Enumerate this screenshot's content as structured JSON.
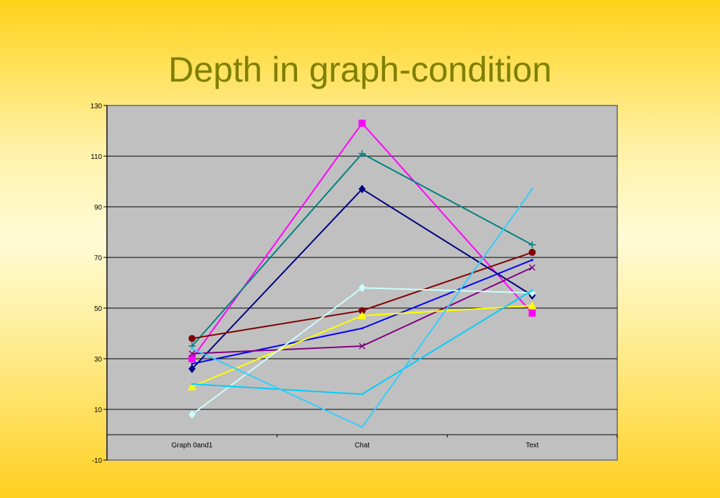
{
  "title": "Depth in graph-condition",
  "chart_data": {
    "type": "line",
    "title": "Depth in graph-condition",
    "categories": [
      "Graph 0and1",
      "Chat",
      "Text"
    ],
    "ylim": [
      -10,
      130
    ],
    "yticks": [
      -10,
      10,
      30,
      50,
      70,
      90,
      110,
      130
    ],
    "ytick_labels": [
      "-10",
      "10",
      "30",
      "50",
      "70",
      "90",
      "110",
      "130"
    ],
    "grid": true,
    "legend": "none",
    "series": [
      {
        "values": [
          30,
          123,
          48
        ],
        "color": "#ff00ff",
        "marker": "square"
      },
      {
        "values": [
          35,
          111,
          75
        ],
        "color": "#008080",
        "marker": "plus"
      },
      {
        "values": [
          26,
          97,
          55
        ],
        "color": "#000080",
        "marker": "diamond"
      },
      {
        "values": [
          38,
          49,
          72
        ],
        "color": "#800000",
        "marker": "circle"
      },
      {
        "values": [
          28,
          42,
          69
        ],
        "color": "#0000ff",
        "marker": "none"
      },
      {
        "values": [
          32,
          35,
          66
        ],
        "color": "#800080",
        "marker": "x"
      },
      {
        "values": [
          19,
          47,
          51
        ],
        "color": "#ffff00",
        "marker": "triangle"
      },
      {
        "values": [
          8,
          58,
          56
        ],
        "color": "#ccffff",
        "marker": "diamond"
      },
      {
        "values": [
          20,
          16,
          57
        ],
        "color": "#00ccff",
        "marker": "none"
      },
      {
        "values": [
          34,
          3,
          97
        ],
        "color": "#33ccff",
        "marker": "none"
      }
    ]
  }
}
